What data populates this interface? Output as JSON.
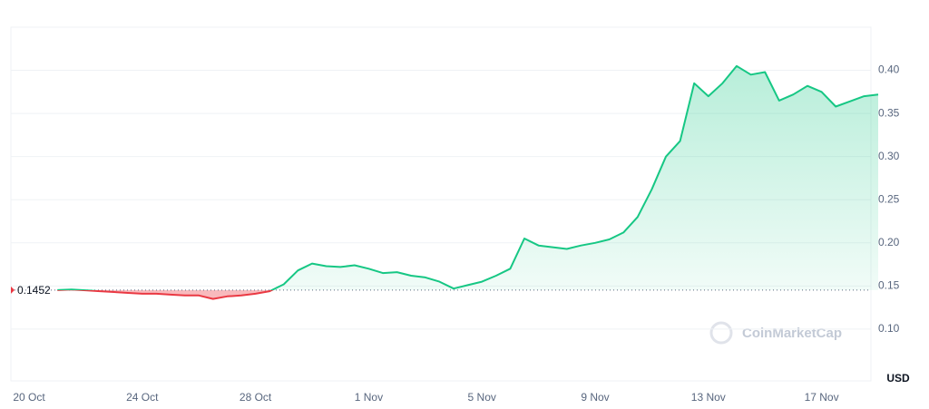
{
  "chart_data": {
    "type": "line",
    "categories": [
      "20 Oct",
      null,
      null,
      null,
      null,
      null,
      null,
      null,
      "24 Oct",
      null,
      null,
      null,
      null,
      null,
      null,
      null,
      "28 Oct",
      null,
      null,
      null,
      null,
      null,
      null,
      null,
      "1 Nov",
      null,
      null,
      null,
      null,
      null,
      null,
      null,
      "5 Nov",
      null,
      null,
      null,
      null,
      null,
      null,
      null,
      "9 Nov",
      null,
      null,
      null,
      null,
      null,
      null,
      null,
      "13 Nov",
      null,
      null,
      null,
      null,
      null,
      null,
      null,
      "17 Nov",
      null,
      null,
      null,
      null
    ],
    "series": [
      {
        "color": "#16c784",
        "negative_color": "#ea3943",
        "values": [
          null,
          null,
          0.1452,
          0.146,
          0.145,
          0.144,
          0.143,
          0.142,
          0.141,
          0.141,
          0.14,
          0.139,
          0.139,
          0.135,
          0.138,
          0.139,
          0.141,
          0.144,
          0.152,
          0.168,
          0.176,
          0.173,
          0.172,
          0.174,
          0.17,
          0.165,
          0.166,
          0.162,
          0.16,
          0.155,
          0.147,
          0.151,
          0.155,
          0.162,
          0.17,
          0.205,
          0.197,
          0.195,
          0.193,
          0.197,
          0.2,
          0.204,
          0.212,
          0.23,
          0.262,
          0.3,
          0.318,
          0.385,
          0.37,
          0.385,
          0.405,
          0.395,
          0.398,
          0.365,
          0.372,
          0.382,
          0.375,
          0.358,
          0.364,
          0.37,
          0.372
        ]
      }
    ],
    "baseline": 0.1452,
    "ylim": [
      0.04,
      0.45
    ],
    "yticks": [
      {
        "value": 0.1,
        "label": "0.10"
      },
      0.15,
      {
        "value": 0.2,
        "label": "0.20"
      },
      0.25,
      {
        "value": 0.3,
        "label": "0.30"
      },
      0.35,
      {
        "value": 0.4,
        "label": "0.40"
      }
    ],
    "y_axis_label": "USD",
    "watermark": "CoinMarketCap",
    "grid": true
  }
}
